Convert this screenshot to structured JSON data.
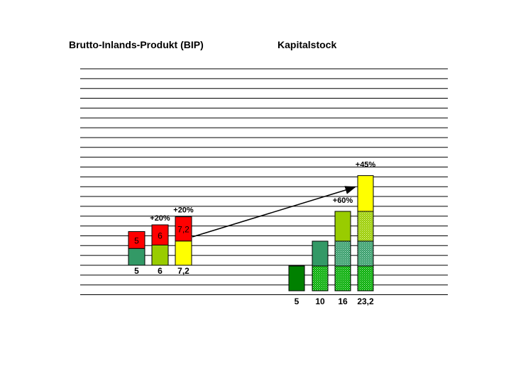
{
  "chart_data": [
    {
      "type": "bar",
      "stacked": true,
      "title": "Brutto-Inlands-Produkt (BIP)",
      "categories": [
        "5",
        "6",
        "7,2"
      ],
      "values": [
        5,
        6,
        7.2
      ],
      "segments": [
        {
          "lower": 2.5,
          "upper": 2.5,
          "lower_color": "#339966",
          "upper_color": "#ff0000",
          "upper_label": "5"
        },
        {
          "lower": 3.0,
          "upper": 3.0,
          "lower_color": "#99cc00",
          "upper_color": "#ff0000",
          "upper_label": "6"
        },
        {
          "lower": 3.6,
          "upper": 3.6,
          "lower_color": "#ffff00",
          "upper_color": "#ff0000",
          "upper_label": "7,2"
        }
      ],
      "growth_labels": [
        "",
        "+20%",
        "+20%"
      ],
      "grid": true
    },
    {
      "type": "bar",
      "stacked": true,
      "title": "Kapitalstock",
      "categories": [
        "5",
        "10",
        "16",
        "23,2"
      ],
      "values": [
        5,
        10,
        16,
        23.2
      ],
      "segments": [
        [
          {
            "value": 5,
            "color": "#008000",
            "pattern": "none"
          }
        ],
        [
          {
            "value": 5,
            "color": "#00aa00",
            "pattern": "dots"
          },
          {
            "value": 5,
            "color": "#339966",
            "pattern": "none"
          }
        ],
        [
          {
            "value": 5,
            "color": "#00aa00",
            "pattern": "dots"
          },
          {
            "value": 5,
            "color": "#339966",
            "pattern": "dots"
          },
          {
            "value": 6,
            "color": "#99cc00",
            "pattern": "none"
          }
        ],
        [
          {
            "value": 5,
            "color": "#00aa00",
            "pattern": "dots"
          },
          {
            "value": 5,
            "color": "#339966",
            "pattern": "dots"
          },
          {
            "value": 6,
            "color": "#99cc00",
            "pattern": "dots"
          },
          {
            "value": 7.2,
            "color": "#ffff00",
            "pattern": "none"
          }
        ]
      ],
      "growth_labels": [
        "",
        "",
        "+60%",
        "+45%"
      ],
      "grid": true
    }
  ]
}
